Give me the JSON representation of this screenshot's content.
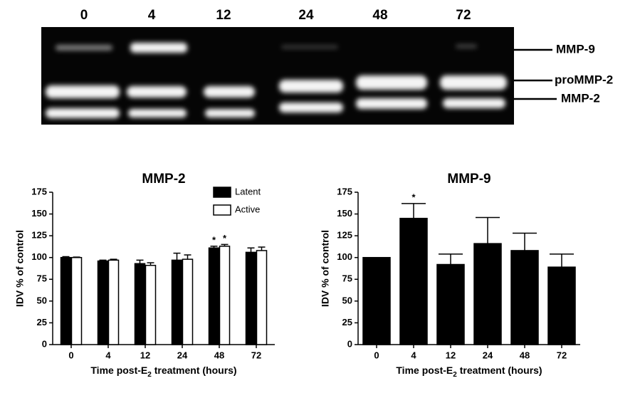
{
  "gel": {
    "lanes": [
      "0",
      "4",
      "12",
      "24",
      "48",
      "72"
    ],
    "bands": [
      "MMP-9",
      "proMMP-2",
      "MMP-2"
    ]
  },
  "chart_data": [
    {
      "type": "bar",
      "title": "MMP-2",
      "ylabel": "IDV % of control",
      "xlabel_parts": [
        "Time post-E",
        "2",
        " treatment (hours)"
      ],
      "categories": [
        "0",
        "4",
        "12",
        "24",
        "48",
        "72"
      ],
      "series": [
        {
          "name": "Latent",
          "color": "#000000",
          "values": [
            100,
            96,
            93,
            97,
            111,
            106
          ],
          "errors": [
            1,
            1,
            4,
            8,
            2,
            5
          ]
        },
        {
          "name": "Active",
          "color": "#ffffff",
          "values": [
            100,
            97,
            91,
            98,
            113,
            108
          ],
          "errors": [
            0.5,
            1,
            3,
            5,
            2,
            4
          ]
        }
      ],
      "ylim": [
        0,
        175
      ],
      "yticks": [
        0,
        25,
        50,
        75,
        100,
        125,
        150,
        175
      ],
      "legend": "top-right",
      "annotations": [
        {
          "text": "*",
          "series": 0,
          "index": 4
        },
        {
          "text": "*",
          "series": 1,
          "index": 4
        }
      ]
    },
    {
      "type": "bar",
      "title": "MMP-9",
      "ylabel": "IDV % of control",
      "xlabel_parts": [
        "Time post-E",
        "2",
        " treatment (hours)"
      ],
      "categories": [
        "0",
        "4",
        "12",
        "24",
        "48",
        "72"
      ],
      "values": [
        100,
        145,
        92,
        116,
        108,
        89
      ],
      "errors": [
        0,
        17,
        12,
        30,
        20,
        15
      ],
      "color": "#000000",
      "ylim": [
        0,
        175
      ],
      "yticks": [
        0,
        25,
        50,
        75,
        100,
        125,
        150,
        175
      ],
      "annotations": [
        {
          "text": "*",
          "index": 1
        }
      ]
    }
  ]
}
